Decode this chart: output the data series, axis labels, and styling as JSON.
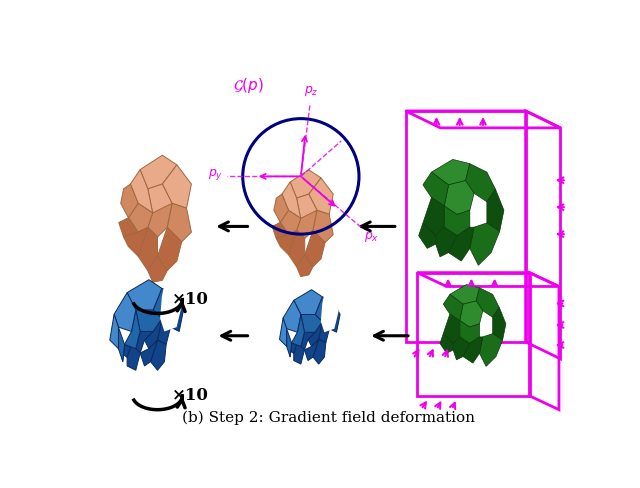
{
  "title": "(b) Step 2: Gradient field deformation",
  "title_fontsize": 11,
  "title_color": "#000000",
  "background_color": "#ffffff",
  "magenta_color": "#EE00EE",
  "navy_color": "#000080",
  "salmon_light": "#E8AA88",
  "salmon_mid": "#D08860",
  "salmon_dark": "#B86840",
  "blue_light": "#4488CC",
  "blue_mid": "#2266AA",
  "blue_dark": "#114488",
  "green_light": "#2E8B2E",
  "green_mid": "#1A6E1A",
  "green_dark": "#0E4E0E"
}
